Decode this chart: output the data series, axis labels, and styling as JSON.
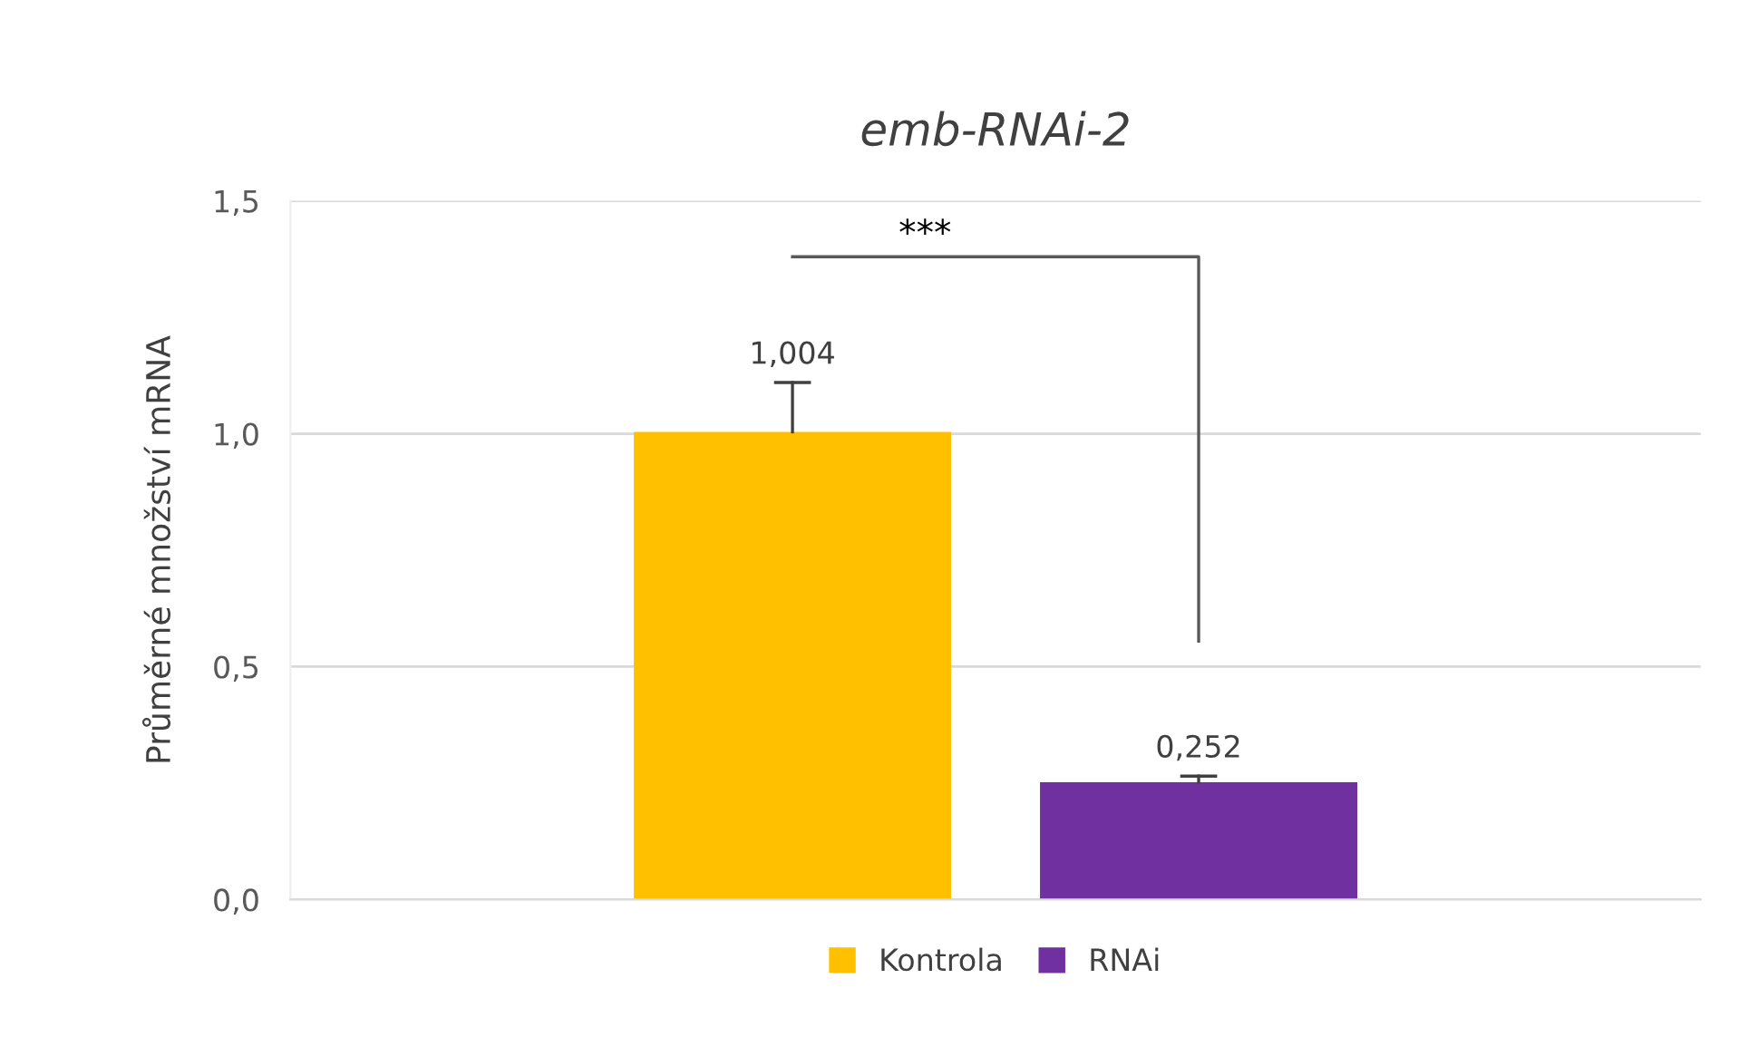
{
  "chart_data": {
    "type": "bar",
    "title": "emb-RNAi-2",
    "ylabel": "Průměrné množství mRNA",
    "categories": [
      null
    ],
    "series": [
      {
        "name": "Kontrola",
        "color": "#ffc000",
        "values": [
          1.004
        ],
        "errors": [
          [
            1.004,
            1.11
          ]
        ],
        "value_labels": [
          "1,004"
        ]
      },
      {
        "name": "RNAi",
        "color": "#7030a0",
        "values": [
          0.252
        ],
        "errors": [
          [
            0.252,
            0.265
          ]
        ],
        "value_labels": [
          "0,252"
        ]
      }
    ],
    "ylim": [
      0,
      1.5
    ],
    "yticks": [
      {
        "value": 0,
        "label": "0,0"
      },
      {
        "value": 0.5,
        "label": "0,5"
      },
      {
        "value": 1.0,
        "label": "1,0"
      },
      {
        "value": 1.5,
        "label": "1,5"
      }
    ],
    "grid": "y",
    "legend": "bottom",
    "annotations": [
      "***"
    ]
  }
}
